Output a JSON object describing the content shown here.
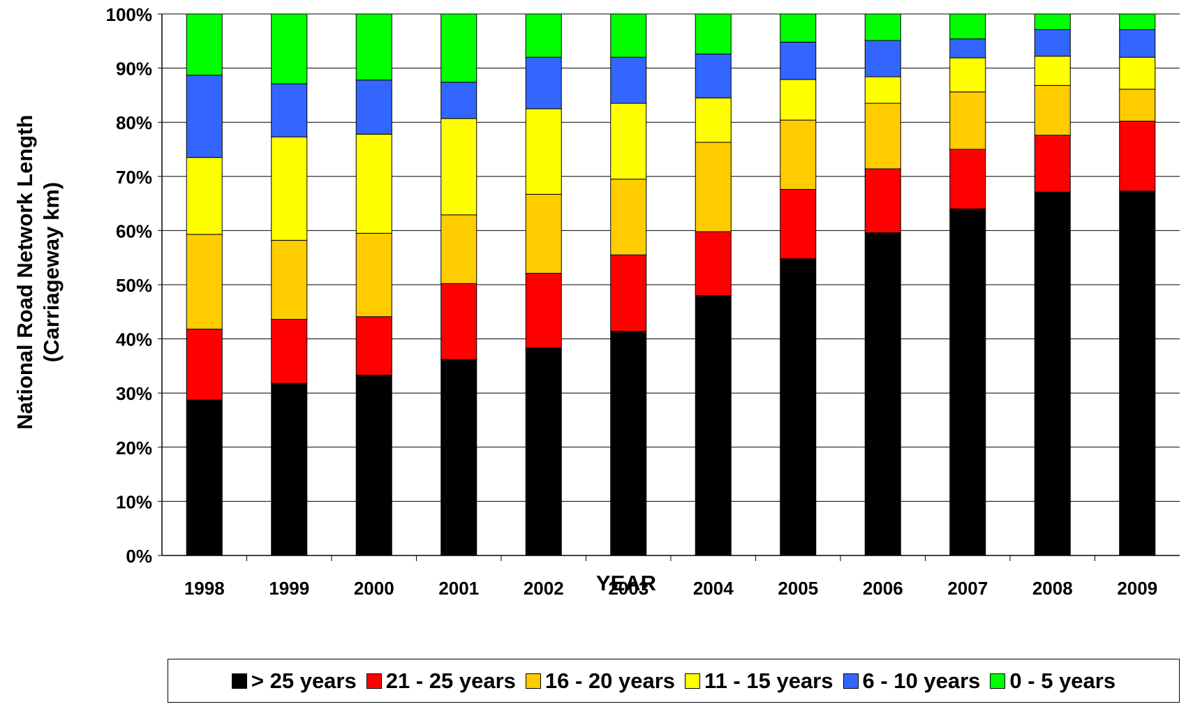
{
  "chart_data": {
    "type": "bar",
    "stacked": true,
    "categories": [
      "1998",
      "1999",
      "2000",
      "2001",
      "2002",
      "2003",
      "2004",
      "2005",
      "2006",
      "2007",
      "2008",
      "2009"
    ],
    "series": [
      {
        "name": "> 25 years",
        "color": "#000000",
        "values": [
          28.7,
          31.8,
          33.3,
          36.2,
          38.3,
          41.4,
          48.0,
          54.8,
          59.6,
          64.0,
          67.1,
          67.3
        ]
      },
      {
        "name": "21 - 25 years",
        "color": "#ff0000",
        "values": [
          13.1,
          11.8,
          10.8,
          14.0,
          13.8,
          14.1,
          11.8,
          12.8,
          11.8,
          11.0,
          10.5,
          12.9
        ]
      },
      {
        "name": "16 - 20 years",
        "color": "#ffcc00",
        "values": [
          17.5,
          14.6,
          15.4,
          12.7,
          14.6,
          14.0,
          16.5,
          12.8,
          12.1,
          10.6,
          9.2,
          5.9
        ]
      },
      {
        "name": "11 - 15 years",
        "color": "#ffff00",
        "values": [
          14.2,
          19.1,
          18.3,
          17.8,
          15.8,
          14.0,
          8.2,
          7.5,
          4.9,
          6.3,
          5.4,
          5.9
        ]
      },
      {
        "name": "6 - 10 years",
        "color": "#3366ff",
        "values": [
          15.2,
          9.8,
          10.0,
          6.7,
          9.5,
          8.5,
          8.1,
          6.9,
          6.7,
          3.5,
          4.9,
          5.1
        ]
      },
      {
        "name": "0 - 5 years",
        "color": "#00ff00",
        "values": [
          11.3,
          12.9,
          12.2,
          12.6,
          8.0,
          8.0,
          7.4,
          5.2,
          4.9,
          4.6,
          2.9,
          2.9
        ]
      }
    ],
    "ylim": [
      0,
      100
    ],
    "yticks": [
      "0%",
      "10%",
      "20%",
      "30%",
      "40%",
      "50%",
      "60%",
      "70%",
      "80%",
      "90%",
      "100%"
    ],
    "xlabel": "YEAR",
    "ylabel_line1": "National Road Network Length",
    "ylabel_line2": "(Carriageway km)",
    "grid": true,
    "legend": "bottom"
  }
}
